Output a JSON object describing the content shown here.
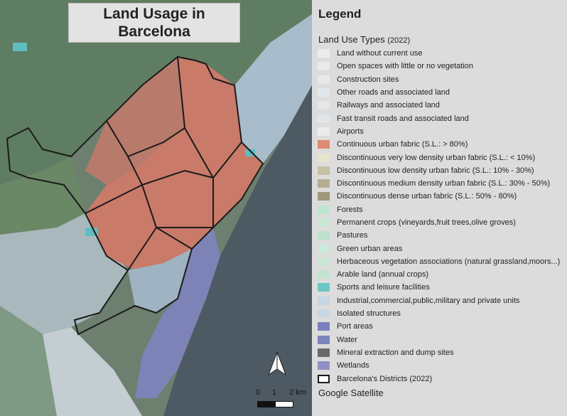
{
  "map": {
    "title_line1": "Land Usage in",
    "title_line2": "Barcelona",
    "north_arrow_label": "N",
    "scale": {
      "labels": [
        "0",
        "1",
        "2 km"
      ]
    },
    "colors": {
      "sea": "#4d5a63",
      "green_hills": "#5e7a5e",
      "urban_dense": "#d27a68",
      "urban_other": "#b9c7d1",
      "port": "#7d82b7",
      "district_border": "#1b1b1b"
    }
  },
  "legend": {
    "title": "Legend",
    "subtitle": "Land Use Types",
    "subtitle_year": "(2022)",
    "items": [
      {
        "label": "Land without current use",
        "color": "#ececec"
      },
      {
        "label": "Open spaces with little or no vegetation",
        "color": "#e9e9e9"
      },
      {
        "label": "Construction sites",
        "color": "#e9e9e9"
      },
      {
        "label": "Other roads and associated land",
        "color": "#e1e6ea"
      },
      {
        "label": "Railways and associated land",
        "color": "#e3e7ea"
      },
      {
        "label": "Fast transit roads and associated land",
        "color": "#e1e6ea"
      },
      {
        "label": "Airports",
        "color": "#ececec"
      },
      {
        "label": "Continuous urban fabric (S.L.: > 80%)",
        "color": "#e08a74"
      },
      {
        "label": "Discontinuous very low density urban fabric (S.L.: < 10%)",
        "color": "#e6e4cd"
      },
      {
        "label": "Discontinuous low density urban fabric (S.L.: 10% - 30%)",
        "color": "#c6c1a3"
      },
      {
        "label": "Discontinuous medium density urban fabric (S.L.: 30% - 50%)",
        "color": "#b4ae90"
      },
      {
        "label": "Discontinuous dense urban fabric (S.L.: 50% -  80%)",
        "color": "#9f9779"
      },
      {
        "label": "Forests",
        "color": "#bfe4cf"
      },
      {
        "label": "Permanent crops (vineyards,fruit trees,olive groves)",
        "color": "#c8e8d4"
      },
      {
        "label": "Pastures",
        "color": "#bde1cb"
      },
      {
        "label": "Green urban areas",
        "color": "#cde9d9"
      },
      {
        "label": "Herbaceous vegetation associations (natural grassland,moors...)",
        "color": "#c8e6d3"
      },
      {
        "label": "Arable land (annual crops)",
        "color": "#c3e4cf"
      },
      {
        "label": "Sports and leisure facilities",
        "color": "#6cc6c6"
      },
      {
        "label": "Industrial,commercial,public,military and private units",
        "color": "#c6d6e2"
      },
      {
        "label": "Isolated structures",
        "color": "#c8d8e4"
      },
      {
        "label": "Port areas",
        "color": "#7a80bd"
      },
      {
        "label": "Water",
        "color": "#7c84bd"
      },
      {
        "label": "Mineral extraction and dump sites",
        "color": "#6a6a6a"
      },
      {
        "label": "Wetlands",
        "color": "#8e90c7"
      },
      {
        "label": "Barcelona's Districts (2022)",
        "color": "#ffffff",
        "outline": true
      }
    ],
    "footer": "Google Satellite"
  }
}
